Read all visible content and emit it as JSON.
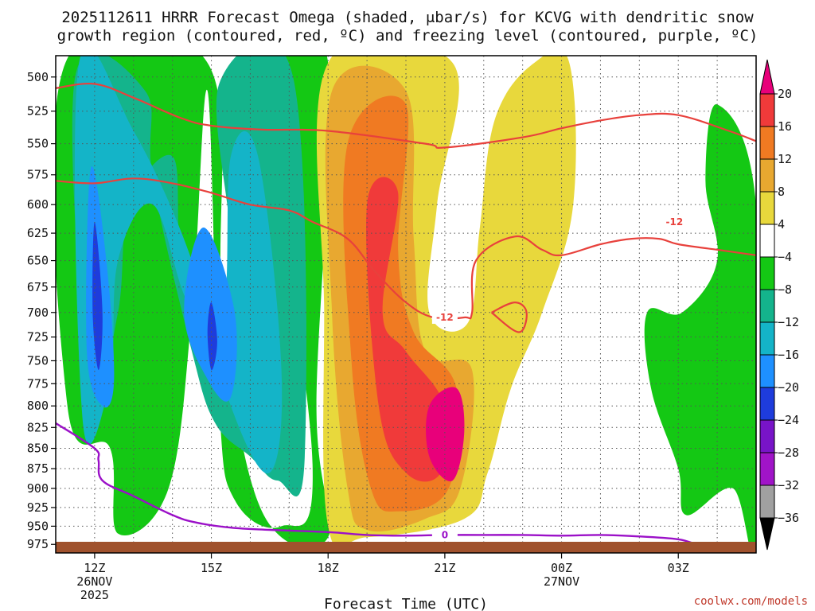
{
  "chart_data": {
    "type": "heatmap",
    "title_line1": "2025112611 HRRR Forecast Omega (shaded, μbar/s) for KCVG with dendritic snow",
    "title_line2": "growth region (contoured, red, ºC) and freezing level (contoured, purple, ºC)",
    "xlabel": "Forecast Time (UTC)",
    "credit": "coolwx.com/models",
    "x_ticks": [
      {
        "label": "12Z",
        "sub1": "26NOV",
        "sub2": "2025",
        "hour": 12
      },
      {
        "label": "15Z",
        "sub1": "",
        "sub2": "",
        "hour": 15
      },
      {
        "label": "18Z",
        "sub1": "",
        "sub2": "",
        "hour": 18
      },
      {
        "label": "21Z",
        "sub1": "",
        "sub2": "",
        "hour": 21
      },
      {
        "label": "00Z",
        "sub1": "27NOV",
        "sub2": "",
        "hour": 24
      },
      {
        "label": "03Z",
        "sub1": "",
        "sub2": "",
        "hour": 27
      }
    ],
    "x_range_hours": [
      11,
      29
    ],
    "y_range_hpa": [
      987,
      485
    ],
    "y_scale": "log",
    "y_ticks": [
      500,
      525,
      550,
      575,
      600,
      625,
      650,
      675,
      700,
      725,
      750,
      775,
      800,
      825,
      850,
      875,
      900,
      925,
      950,
      975
    ],
    "colorbar": {
      "labels": [
        "20",
        "16",
        "12",
        "8",
        "4",
        "−4",
        "−8",
        "−12",
        "−16",
        "−20",
        "−24",
        "−28",
        "−32",
        "−36"
      ],
      "colors_high_to_low": [
        "#e8007a",
        "#f03a3a",
        "#f07a22",
        "#e8a830",
        "#e8d83c",
        "#ffffff",
        "#14c814",
        "#14b48c",
        "#14b4c8",
        "#1e90ff",
        "#1e3cdc",
        "#7814c8",
        "#a014c8",
        "#a0a0a0",
        "#000000"
      ]
    },
    "omega_regions": [
      {
        "name": "upward-motion-neg4",
        "color": "#14c814",
        "points": [
          [
            11.25,
            490
          ],
          [
            14.9,
            490
          ],
          [
            15.3,
            700
          ],
          [
            16.3,
            930
          ],
          [
            18,
            965
          ],
          [
            17.7,
            800
          ],
          [
            18,
            490
          ],
          [
            16.5,
            490
          ],
          [
            17.6,
            870
          ],
          [
            16.8,
            950
          ],
          [
            15.6,
            915
          ],
          [
            15.2,
            800
          ],
          [
            14.9,
            510
          ],
          [
            14.5,
            700
          ],
          [
            13.9,
            900
          ],
          [
            12.6,
            960
          ],
          [
            12.4,
            850
          ],
          [
            11.3,
            800
          ]
        ]
      },
      {
        "name": "upward-motion-neg8",
        "color": "#14b48c",
        "points": [
          [
            11.5,
            500
          ],
          [
            13.3,
            510
          ],
          [
            13.5,
            580
          ],
          [
            14.5,
            740
          ],
          [
            15.1,
            820
          ],
          [
            16,
            860
          ],
          [
            16.7,
            890
          ],
          [
            17.4,
            860
          ],
          [
            17.1,
            500
          ],
          [
            15.2,
            505
          ],
          [
            15.5,
            650
          ],
          [
            14.7,
            730
          ],
          [
            14.2,
            640
          ],
          [
            14,
            560
          ],
          [
            12.9,
            600
          ],
          [
            12.6,
            700
          ],
          [
            11.9,
            790
          ]
        ]
      },
      {
        "name": "upward-motion-neg12",
        "color": "#14b4c8",
        "points": [
          [
            11.6,
            490
          ],
          [
            13,
            540
          ],
          [
            14.5,
            650
          ],
          [
            15.5,
            800
          ],
          [
            16.5,
            880
          ],
          [
            16.8,
            760
          ],
          [
            16.2,
            560
          ],
          [
            15.5,
            560
          ],
          [
            15.3,
            700
          ],
          [
            14.4,
            690
          ],
          [
            13.5,
            600
          ],
          [
            12.6,
            650
          ],
          [
            12.4,
            770
          ],
          [
            11.7,
            820
          ]
        ]
      },
      {
        "name": "upward-motion-neg16",
        "color": "#1e90ff",
        "points": [
          [
            11.9,
            570
          ],
          [
            12.3,
            650
          ],
          [
            12.5,
            770
          ],
          [
            12.2,
            800
          ],
          [
            11.8,
            740
          ]
        ]
      },
      {
        "name": "upward-motion-neg16-b",
        "color": "#1e90ff",
        "points": [
          [
            14.8,
            620
          ],
          [
            15.6,
            700
          ],
          [
            15.5,
            790
          ],
          [
            14.9,
            770
          ],
          [
            14.3,
            700
          ]
        ]
      },
      {
        "name": "upward-motion-neg20",
        "color": "#1e3cdc",
        "points": [
          [
            12,
            615
          ],
          [
            12.2,
            700
          ],
          [
            12.1,
            760
          ],
          [
            11.95,
            700
          ]
        ]
      },
      {
        "name": "upward-motion-neg20-b",
        "color": "#1e3cdc",
        "points": [
          [
            15,
            690
          ],
          [
            15.15,
            730
          ],
          [
            15,
            760
          ],
          [
            14.9,
            720
          ]
        ]
      },
      {
        "name": "downward-motion-4",
        "color": "#e8d83c",
        "points": [
          [
            18,
            490
          ],
          [
            21.2,
            490
          ],
          [
            20.8,
            600
          ],
          [
            20.6,
            700
          ],
          [
            21.6,
            710
          ],
          [
            21.9,
            620
          ],
          [
            22.3,
            530
          ],
          [
            23.3,
            490
          ],
          [
            24.2,
            490
          ],
          [
            24.3,
            600
          ],
          [
            23.5,
            700
          ],
          [
            22.7,
            780
          ],
          [
            22.1,
            880
          ],
          [
            21.5,
            940
          ],
          [
            19,
            965
          ],
          [
            18,
            950
          ],
          [
            17.9,
            700
          ]
        ]
      },
      {
        "name": "downward-motion-8",
        "color": "#e8a830",
        "points": [
          [
            18.1,
            510
          ],
          [
            20,
            510
          ],
          [
            20.2,
            630
          ],
          [
            20.5,
            740
          ],
          [
            21.7,
            760
          ],
          [
            21.4,
            900
          ],
          [
            20.5,
            940
          ],
          [
            19,
            955
          ],
          [
            18.5,
            900
          ],
          [
            18.1,
            700
          ]
        ]
      },
      {
        "name": "downward-motion-12",
        "color": "#f07a22",
        "points": [
          [
            18.5,
            550
          ],
          [
            20,
            520
          ],
          [
            19.8,
            640
          ],
          [
            20.2,
            720
          ],
          [
            21.3,
            780
          ],
          [
            21.1,
            900
          ],
          [
            19.8,
            930
          ],
          [
            19.1,
            900
          ],
          [
            18.6,
            750
          ]
        ]
      },
      {
        "name": "downward-motion-16",
        "color": "#f03a3a",
        "points": [
          [
            19,
            600
          ],
          [
            19.8,
            590
          ],
          [
            19.4,
            700
          ],
          [
            20,
            740
          ],
          [
            21,
            800
          ],
          [
            20.9,
            880
          ],
          [
            20,
            880
          ],
          [
            19.3,
            800
          ]
        ]
      },
      {
        "name": "downward-motion-20",
        "color": "#e8007a",
        "points": [
          [
            20.6,
            800
          ],
          [
            21.3,
            780
          ],
          [
            21.5,
            830
          ],
          [
            21.2,
            890
          ],
          [
            20.6,
            860
          ]
        ]
      },
      {
        "name": "upward-motion-late",
        "color": "#14c814",
        "points": [
          [
            28,
            520
          ],
          [
            29,
            600
          ],
          [
            29,
            975
          ],
          [
            28.4,
            900
          ],
          [
            27.2,
            935
          ],
          [
            27,
            875
          ],
          [
            26.3,
            780
          ],
          [
            26.2,
            700
          ],
          [
            27.1,
            700
          ],
          [
            28,
            650
          ],
          [
            27.7,
            580
          ]
        ]
      }
    ],
    "dendritic_contours": [
      {
        "label": "-12",
        "points": [
          [
            11,
            508
          ],
          [
            12,
            505
          ],
          [
            13,
            515
          ],
          [
            14.2,
            530
          ],
          [
            15,
            536
          ],
          [
            16.3,
            539
          ],
          [
            18,
            540
          ],
          [
            20.5,
            550
          ],
          [
            21,
            553
          ],
          [
            23,
            545
          ],
          [
            24,
            538
          ],
          [
            25,
            532
          ],
          [
            26,
            528
          ],
          [
            27,
            528
          ],
          [
            28.3,
            540
          ],
          [
            29,
            548
          ]
        ]
      },
      {
        "label": "-12",
        "points": [
          [
            11,
            580
          ],
          [
            12,
            582
          ],
          [
            13,
            578
          ],
          [
            14,
            582
          ],
          [
            15,
            590
          ],
          [
            16,
            600
          ],
          [
            17,
            605
          ],
          [
            17.6,
            615
          ],
          [
            18.5,
            630
          ],
          [
            19.2,
            660
          ],
          [
            20,
            690
          ],
          [
            20.7,
            705
          ],
          [
            21.5,
            705
          ],
          [
            21.7,
            700
          ],
          [
            21.8,
            650
          ],
          [
            22.8,
            628
          ],
          [
            23.5,
            640
          ],
          [
            24,
            645
          ],
          [
            25,
            635
          ],
          [
            25.8,
            630
          ],
          [
            26.5,
            630
          ],
          [
            27,
            635
          ],
          [
            28,
            640
          ],
          [
            29,
            645
          ]
        ]
      },
      {
        "label": "",
        "points": [
          [
            22.2,
            700
          ],
          [
            22.8,
            690
          ],
          [
            23.1,
            700
          ],
          [
            22.9,
            720
          ],
          [
            22.2,
            700
          ]
        ]
      }
    ],
    "freezing_level": {
      "label": "0",
      "points": [
        [
          11,
          820
        ],
        [
          12,
          850
        ],
        [
          12.1,
          865
        ],
        [
          12.2,
          890
        ],
        [
          13,
          910
        ],
        [
          14,
          935
        ],
        [
          14.6,
          945
        ],
        [
          15.5,
          952
        ],
        [
          16.5,
          955
        ],
        [
          18,
          958
        ],
        [
          19,
          962
        ],
        [
          20,
          963
        ],
        [
          21,
          962
        ],
        [
          22,
          962
        ],
        [
          23,
          962
        ],
        [
          24,
          963
        ],
        [
          25,
          962
        ],
        [
          26,
          964
        ],
        [
          27,
          968
        ],
        [
          27.5,
          975
        ],
        [
          28.6,
          987
        ]
      ]
    }
  }
}
